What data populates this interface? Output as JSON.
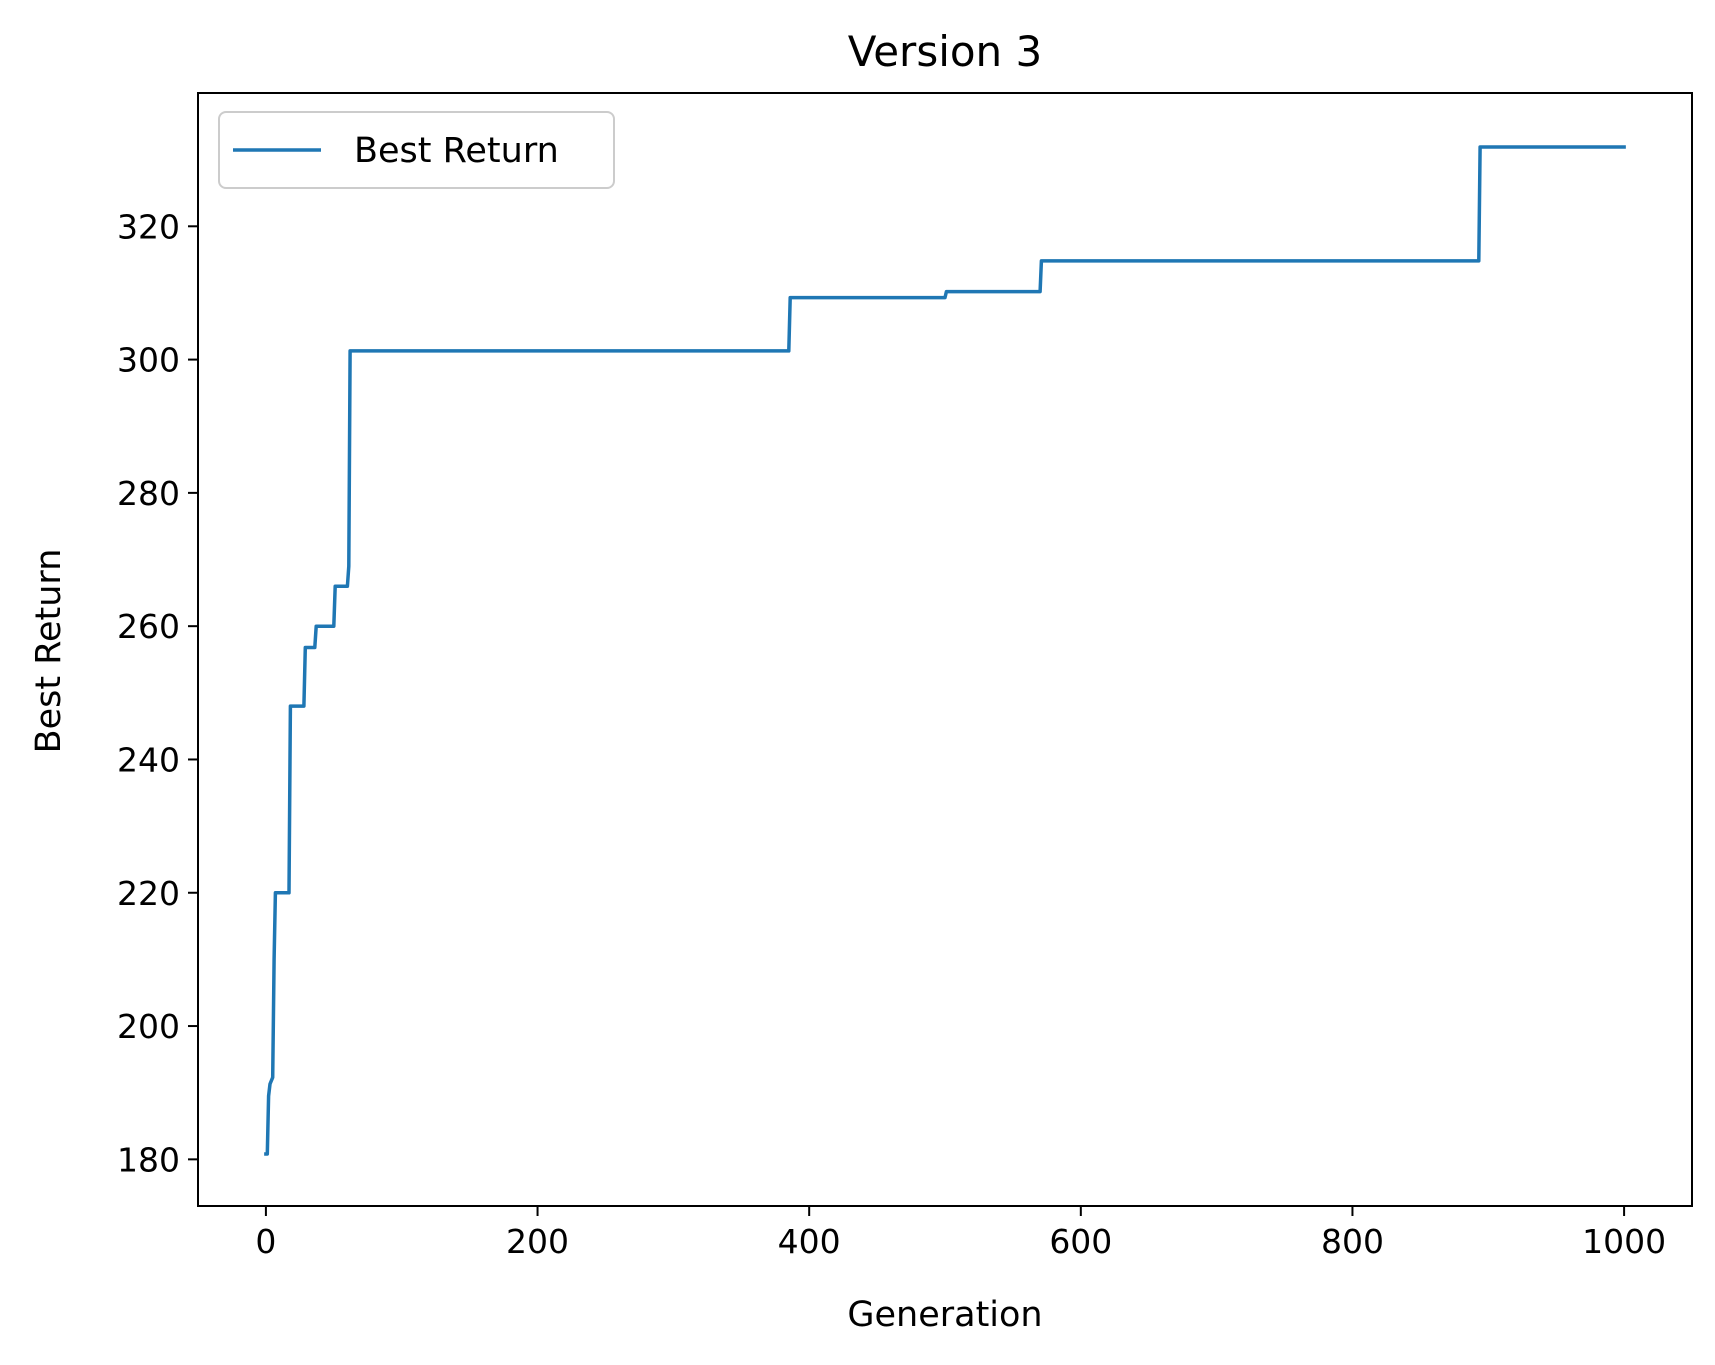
{
  "chart_data": {
    "type": "line",
    "title": "Version 3",
    "xlabel": "Generation",
    "ylabel": "Best Return",
    "xlim": [
      -50,
      1050
    ],
    "ylim": [
      173,
      340
    ],
    "xticks": [
      0,
      200,
      400,
      600,
      800,
      1000
    ],
    "yticks": [
      180,
      200,
      220,
      240,
      260,
      280,
      300,
      320
    ],
    "grid": false,
    "legend_position": "top-left",
    "series": [
      {
        "name": "Best Return",
        "color": "#1f77b4",
        "x": [
          0,
          1,
          2,
          3,
          5,
          6,
          7,
          8,
          10,
          17,
          18,
          28,
          29,
          36,
          37,
          50,
          51,
          60,
          61,
          62,
          385,
          386,
          500,
          501,
          570,
          571,
          893,
          894,
          1000
        ],
        "y": [
          180.8,
          180.8,
          189.5,
          191.3,
          192.3,
          210,
          220,
          220,
          220,
          220,
          248,
          248,
          256.8,
          256.8,
          260,
          260,
          266,
          266,
          269,
          301.3,
          301.3,
          309.3,
          309.3,
          310.2,
          310.2,
          314.8,
          314.8,
          331.9,
          331.9
        ]
      }
    ]
  }
}
